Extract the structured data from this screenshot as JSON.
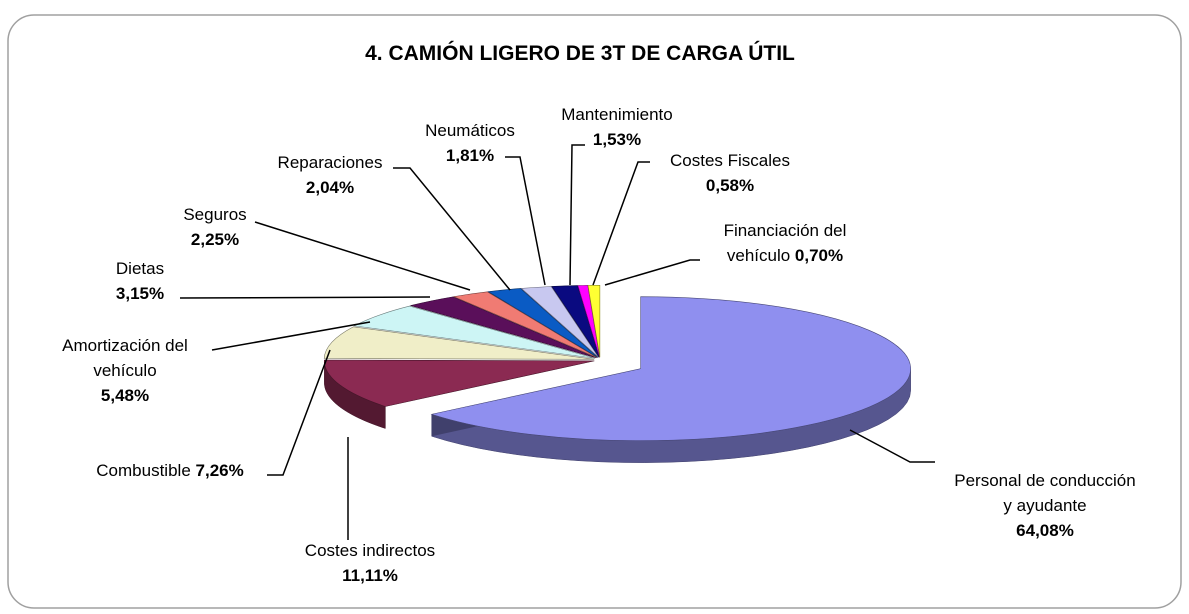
{
  "chart_data": {
    "type": "pie",
    "title": "4. CAMIÓN LIGERO DE 3T DE CARGA ÚTIL",
    "categories": [
      "Personal de conducción y ayudante",
      "Costes indirectos",
      "Combustible",
      "Amortización del vehículo",
      "Dietas",
      "Seguros",
      "Reparaciones",
      "Neumáticos",
      "Mantenimiento",
      "Costes Fiscales",
      "Financiación del vehículo"
    ],
    "values": [
      64.08,
      11.11,
      7.26,
      5.48,
      3.15,
      2.25,
      2.04,
      1.81,
      1.53,
      0.58,
      0.7
    ],
    "value_labels": [
      "64,08%",
      "11,11%",
      "7,26%",
      "5,48%",
      "3,15%",
      "2,25%",
      "2,04%",
      "1,81%",
      "1,53%",
      "0,58%",
      "0,70%"
    ],
    "colors": [
      "#8f8fef",
      "#8b2a52",
      "#f0eec8",
      "#cdf5f5",
      "#5a0f5a",
      "#f07b73",
      "#0a5bc4",
      "#c8c8f0",
      "#0a0a80",
      "#ff00ff",
      "#ffff33"
    ]
  }
}
